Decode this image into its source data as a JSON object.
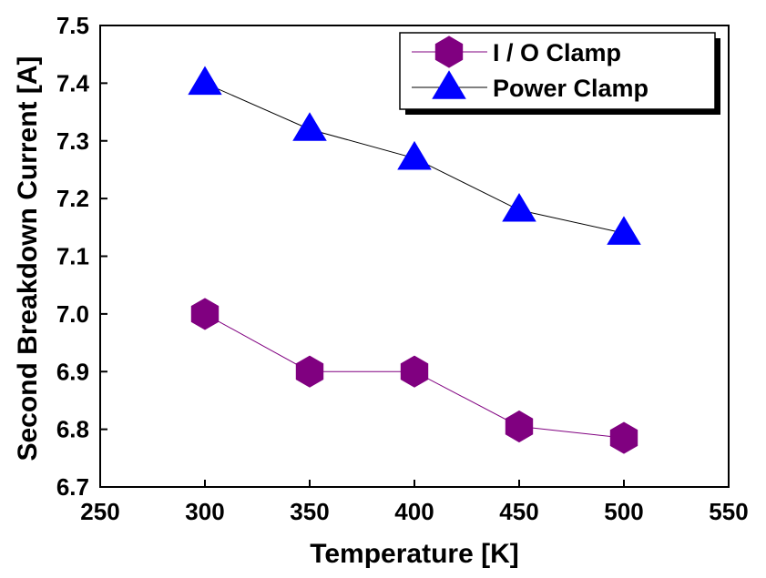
{
  "chart_data": {
    "type": "line",
    "title": "",
    "xlabel": "Temperature [K]",
    "ylabel": "Second Breakdown Current [A]",
    "xlim": [
      250,
      550
    ],
    "ylim": [
      6.7,
      7.5
    ],
    "xticks": [
      "250",
      "300",
      "350",
      "400",
      "450",
      "500",
      "550"
    ],
    "yticks": [
      "6.7",
      "6.8",
      "6.9",
      "7.0",
      "7.1",
      "7.2",
      "7.3",
      "7.4",
      "7.5"
    ],
    "grid": false,
    "legend_position": "top-right",
    "x": [
      300,
      350,
      400,
      450,
      500
    ],
    "series": [
      {
        "name": "I / O Clamp",
        "marker": "hexagon",
        "color": "#800080",
        "values": [
          7.0,
          6.9,
          6.9,
          6.805,
          6.785
        ]
      },
      {
        "name": "Power Clamp",
        "marker": "triangle",
        "color": "#0000ff",
        "values": [
          7.4,
          7.32,
          7.27,
          7.18,
          7.14
        ]
      }
    ]
  }
}
